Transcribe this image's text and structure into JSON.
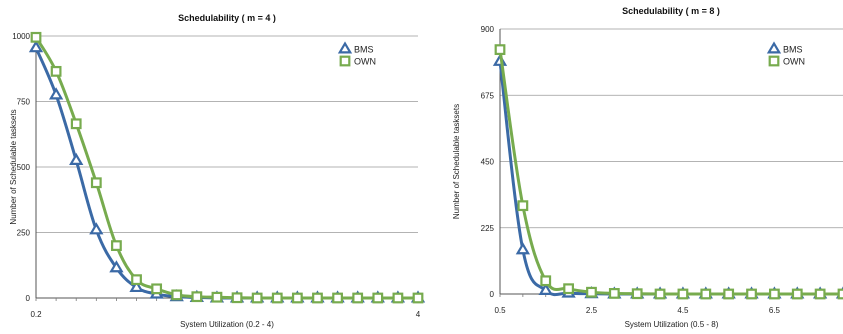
{
  "chart_data": [
    {
      "type": "line",
      "title": "Schedulability ( m = 4 )",
      "xlabel": "System Utilization (0.2 - 4)",
      "ylabel": "Number of Schedulable tasksets",
      "x": [
        0.2,
        0.4,
        0.6,
        0.8,
        1.0,
        1.2,
        1.4,
        1.6,
        1.8,
        2.0,
        2.2,
        2.4,
        2.6,
        2.8,
        3.0,
        3.2,
        3.4,
        3.6,
        3.8,
        4.0
      ],
      "x_tick_labels": [
        {
          "x": 0.2,
          "label": "0.2"
        },
        {
          "x": 4.0,
          "label": "4"
        }
      ],
      "xlim": [
        0.2,
        4.0
      ],
      "ylim": [
        0,
        1000
      ],
      "y_ticks": [
        0,
        250,
        500,
        750,
        1000
      ],
      "grid": "horizontal",
      "legend_position": "top-right",
      "series": [
        {
          "name": "BMS",
          "color": "#3b6aa6",
          "marker": "triangle",
          "values": [
            955,
            775,
            525,
            260,
            115,
            40,
            15,
            5,
            2,
            0,
            0,
            0,
            0,
            0,
            0,
            0,
            0,
            0,
            0,
            0
          ]
        },
        {
          "name": "OWN",
          "color": "#77ab4e",
          "marker": "square",
          "values": [
            995,
            865,
            665,
            440,
            200,
            70,
            35,
            12,
            5,
            3,
            1,
            0,
            0,
            0,
            0,
            0,
            0,
            0,
            0,
            0
          ]
        }
      ]
    },
    {
      "type": "line",
      "title": "Schedulability ( m = 8 )",
      "xlabel": "System Utilization (0.5 - 8)",
      "ylabel": "Number of Schedulable tasksets",
      "x": [
        0.5,
        1.0,
        1.5,
        2.0,
        2.5,
        3.0,
        3.5,
        4.0,
        4.5,
        5.0,
        5.5,
        6.0,
        6.5,
        7.0,
        7.5,
        8.0
      ],
      "x_tick_labels": [
        {
          "x": 0.5,
          "label": "0.5"
        },
        {
          "x": 2.5,
          "label": "2.5"
        },
        {
          "x": 4.5,
          "label": "4.5"
        },
        {
          "x": 6.5,
          "label": "6.5"
        }
      ],
      "xlim": [
        0.5,
        8.0
      ],
      "ylim": [
        0,
        900
      ],
      "y_ticks": [
        0,
        225,
        450,
        675,
        900
      ],
      "grid": "horizontal",
      "legend_position": "top-right",
      "series": [
        {
          "name": "BMS",
          "color": "#3b6aa6",
          "marker": "triangle",
          "values": [
            790,
            150,
            12,
            3,
            1,
            0,
            0,
            0,
            0,
            0,
            0,
            0,
            0,
            0,
            0,
            0
          ]
        },
        {
          "name": "OWN",
          "color": "#77ab4e",
          "marker": "square",
          "values": [
            830,
            300,
            45,
            18,
            6,
            2,
            1,
            0,
            0,
            0,
            0,
            0,
            0,
            0,
            0,
            0
          ]
        }
      ]
    }
  ]
}
